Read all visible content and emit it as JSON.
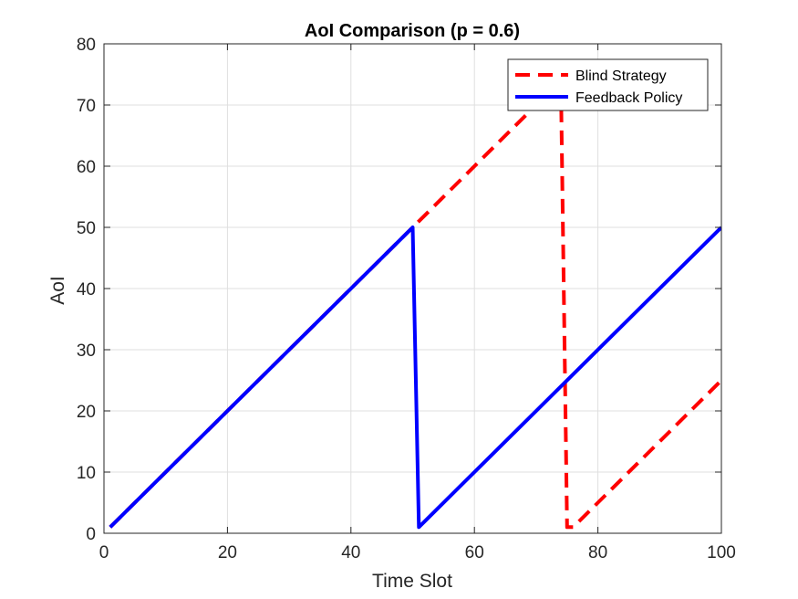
{
  "chart_data": {
    "type": "line",
    "title": "AoI Comparison (p = 0.6)",
    "xlabel": "Time Slot",
    "ylabel": "AoI",
    "xlim": [
      0,
      100
    ],
    "ylim": [
      0,
      80
    ],
    "xticks": [
      0,
      20,
      40,
      60,
      80,
      100
    ],
    "yticks": [
      0,
      10,
      20,
      30,
      40,
      50,
      60,
      70,
      80
    ],
    "grid": true,
    "legend_position": "top-right",
    "series": [
      {
        "name": "Blind Strategy",
        "color": "#ff0000",
        "style": "dashed",
        "x": [
          1,
          74,
          75,
          76,
          100
        ],
        "y": [
          1,
          74,
          1,
          1,
          25
        ]
      },
      {
        "name": "Feedback Policy",
        "color": "#0000ff",
        "style": "solid",
        "x": [
          1,
          50,
          51,
          100
        ],
        "y": [
          1,
          50,
          1,
          50
        ]
      }
    ]
  }
}
